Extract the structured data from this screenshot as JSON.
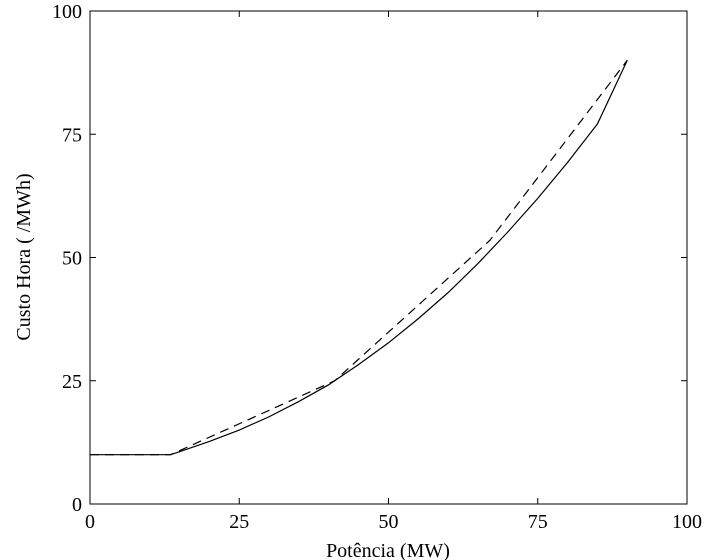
{
  "chart_data": {
    "type": "line",
    "xlabel": "Potência (MW)",
    "ylabel": "Custo Hora ( /MWh)",
    "xlim": [
      0,
      100
    ],
    "ylim": [
      0,
      100
    ],
    "xticks": [
      0,
      25,
      50,
      75,
      100
    ],
    "yticks": [
      0,
      25,
      50,
      75,
      100
    ],
    "xtick_labels": [
      "0",
      "25",
      "50",
      "75",
      "100"
    ],
    "ytick_labels": [
      "0",
      "25",
      "50",
      "75",
      "100"
    ],
    "grid": false,
    "series": [
      {
        "style": "solid",
        "color": "#000000",
        "x": [
          0,
          13.5,
          15,
          20,
          25,
          30,
          35,
          40,
          45,
          50,
          55,
          60,
          65,
          70,
          75,
          80,
          85,
          90
        ],
        "y": [
          10,
          10,
          10.6,
          12.7,
          15.0,
          17.7,
          20.8,
          24.2,
          28.3,
          32.7,
          37.6,
          42.9,
          48.8,
          55.2,
          62.0,
          69.3,
          77.1,
          90
        ]
      },
      {
        "style": "dashed",
        "color": "#000000",
        "x": [
          0,
          13.5,
          41,
          67,
          90
        ],
        "y": [
          10,
          10,
          25,
          53.5,
          90
        ]
      }
    ]
  }
}
